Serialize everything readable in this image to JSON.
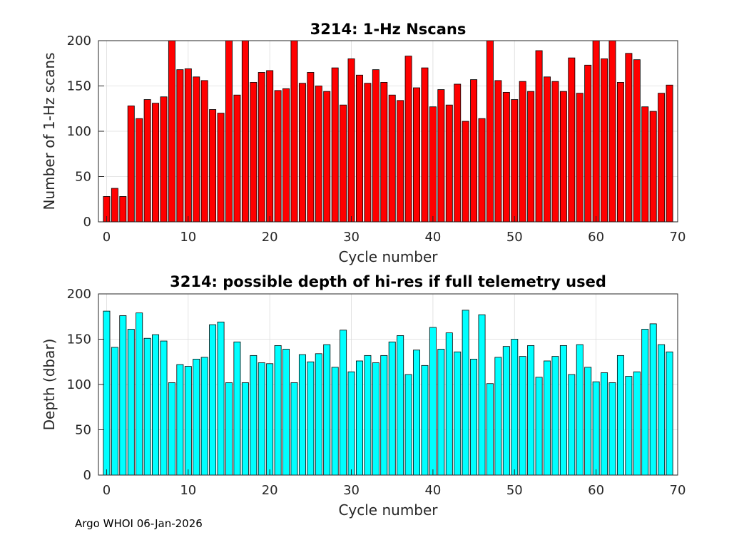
{
  "footer": "Argo WHOI 06-Jan-2026",
  "chart_data": [
    {
      "type": "bar",
      "title": "3214: 1-Hz Nscans",
      "xlabel": "Cycle number",
      "ylabel": "Number of 1-Hz scans",
      "xlim": [
        -1,
        70
      ],
      "ylim": [
        0,
        200
      ],
      "xticks": [
        0,
        10,
        20,
        30,
        40,
        50,
        60,
        70
      ],
      "yticks": [
        0,
        50,
        100,
        150,
        200
      ],
      "grid": true,
      "color": "#ff0000",
      "x": [
        0,
        1,
        2,
        3,
        4,
        5,
        6,
        7,
        8,
        9,
        10,
        11,
        12,
        13,
        14,
        15,
        16,
        17,
        18,
        19,
        20,
        21,
        22,
        23,
        24,
        25,
        26,
        27,
        28,
        29,
        30,
        31,
        32,
        33,
        34,
        35,
        36,
        37,
        38,
        39,
        40,
        41,
        42,
        43,
        44,
        45,
        46,
        47,
        48,
        49,
        50,
        51,
        52,
        53,
        54,
        55,
        56,
        57,
        58,
        59,
        60,
        61,
        62,
        63,
        64,
        65,
        66,
        67,
        68,
        69
      ],
      "values": [
        28,
        37,
        28,
        128,
        114,
        135,
        131,
        138,
        200,
        168,
        169,
        160,
        156,
        124,
        120,
        200,
        140,
        200,
        154,
        165,
        167,
        145,
        147,
        200,
        153,
        165,
        150,
        144,
        170,
        129,
        180,
        162,
        153,
        168,
        154,
        140,
        134,
        183,
        148,
        170,
        127,
        146,
        129,
        152,
        111,
        157,
        114,
        200,
        156,
        143,
        135,
        155,
        144,
        189,
        160,
        155,
        144,
        181,
        142,
        173,
        200,
        180,
        200,
        154,
        186,
        179,
        127,
        122,
        142,
        151
      ]
    },
    {
      "type": "bar",
      "title": "3214: possible depth of hi-res if full telemetry used",
      "xlabel": "Cycle number",
      "ylabel": "Depth (dbar)",
      "xlim": [
        -1,
        70
      ],
      "ylim": [
        0,
        200
      ],
      "xticks": [
        0,
        10,
        20,
        30,
        40,
        50,
        60,
        70
      ],
      "yticks": [
        0,
        50,
        100,
        150,
        200
      ],
      "grid": true,
      "color": "#00ffff",
      "x": [
        0,
        1,
        2,
        3,
        4,
        5,
        6,
        7,
        8,
        9,
        10,
        11,
        12,
        13,
        14,
        15,
        16,
        17,
        18,
        19,
        20,
        21,
        22,
        23,
        24,
        25,
        26,
        27,
        28,
        29,
        30,
        31,
        32,
        33,
        34,
        35,
        36,
        37,
        38,
        39,
        40,
        41,
        42,
        43,
        44,
        45,
        46,
        47,
        48,
        49,
        50,
        51,
        52,
        53,
        54,
        55,
        56,
        57,
        58,
        59,
        60,
        61,
        62,
        63,
        64,
        65,
        66,
        67,
        68,
        69
      ],
      "values": [
        181,
        141,
        176,
        161,
        179,
        151,
        155,
        148,
        102,
        122,
        120,
        128,
        130,
        166,
        169,
        102,
        147,
        102,
        132,
        124,
        123,
        143,
        139,
        102,
        133,
        125,
        134,
        144,
        119,
        160,
        114,
        126,
        132,
        124,
        132,
        147,
        154,
        111,
        138,
        121,
        163,
        139,
        157,
        136,
        182,
        128,
        177,
        101,
        130,
        142,
        150,
        131,
        143,
        108,
        126,
        131,
        143,
        111,
        144,
        119,
        103,
        113,
        102,
        132,
        109,
        114,
        161,
        167,
        144,
        136
      ]
    }
  ]
}
